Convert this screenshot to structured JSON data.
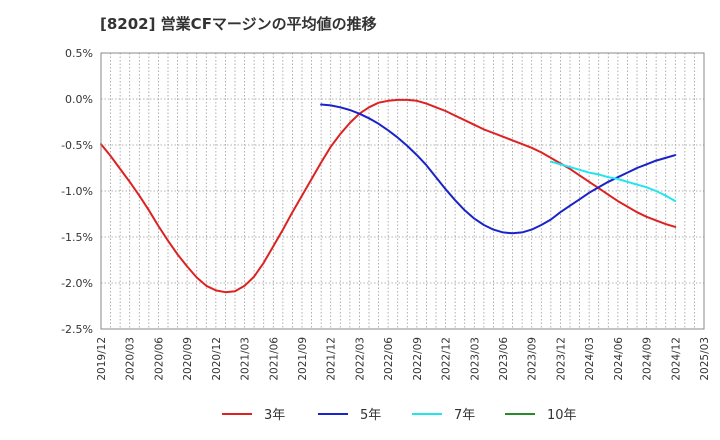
{
  "chart_data": {
    "type": "line",
    "title": "[8202]  営業CFマージンの平均値の推移",
    "xlabel": "",
    "ylabel": "",
    "ylim": [
      -2.5,
      0.5
    ],
    "yticks": [
      0.5,
      0.0,
      -0.5,
      -1.0,
      -1.5,
      -2.0,
      -2.5
    ],
    "ytick_labels": [
      "0.5%",
      "0.0%",
      "-0.5%",
      "-1.0%",
      "-1.5%",
      "-2.0%",
      "-2.5%"
    ],
    "xlim": [
      "2019-12",
      "2025-03"
    ],
    "xtick_labels": [
      "2019/12",
      "2020/03",
      "2020/06",
      "2020/09",
      "2020/12",
      "2021/03",
      "2021/06",
      "2021/09",
      "2021/12",
      "2022/03",
      "2022/06",
      "2022/09",
      "2022/12",
      "2023/03",
      "2023/06",
      "2023/09",
      "2023/12",
      "2024/03",
      "2024/06",
      "2024/09",
      "2024/12",
      "2025/03"
    ],
    "grid": true,
    "legend_position": "bottom",
    "series": [
      {
        "name": "3年",
        "color": "#dd2222",
        "points": [
          [
            "2019-12",
            -0.49
          ],
          [
            "2020-01",
            -0.62
          ],
          [
            "2020-02",
            -0.76
          ],
          [
            "2020-03",
            -0.9
          ],
          [
            "2020-04",
            -1.05
          ],
          [
            "2020-05",
            -1.21
          ],
          [
            "2020-06",
            -1.38
          ],
          [
            "2020-07",
            -1.54
          ],
          [
            "2020-08",
            -1.69
          ],
          [
            "2020-09",
            -1.82
          ],
          [
            "2020-10",
            -1.94
          ],
          [
            "2020-11",
            -2.03
          ],
          [
            "2020-12",
            -2.08
          ],
          [
            "2021-01",
            -2.1
          ],
          [
            "2021-02",
            -2.09
          ],
          [
            "2021-03",
            -2.03
          ],
          [
            "2021-04",
            -1.93
          ],
          [
            "2021-05",
            -1.78
          ],
          [
            "2021-06",
            -1.6
          ],
          [
            "2021-07",
            -1.42
          ],
          [
            "2021-08",
            -1.23
          ],
          [
            "2021-09",
            -1.05
          ],
          [
            "2021-10",
            -0.87
          ],
          [
            "2021-11",
            -0.69
          ],
          [
            "2021-12",
            -0.52
          ],
          [
            "2022-01",
            -0.38
          ],
          [
            "2022-02",
            -0.26
          ],
          [
            "2022-03",
            -0.16
          ],
          [
            "2022-04",
            -0.09
          ],
          [
            "2022-05",
            -0.04
          ],
          [
            "2022-06",
            -0.02
          ],
          [
            "2022-07",
            -0.01
          ],
          [
            "2022-08",
            -0.01
          ],
          [
            "2022-09",
            -0.02
          ],
          [
            "2022-10",
            -0.05
          ],
          [
            "2022-11",
            -0.09
          ],
          [
            "2022-12",
            -0.13
          ],
          [
            "2023-01",
            -0.18
          ],
          [
            "2023-02",
            -0.23
          ],
          [
            "2023-03",
            -0.28
          ],
          [
            "2023-04",
            -0.33
          ],
          [
            "2023-05",
            -0.37
          ],
          [
            "2023-06",
            -0.41
          ],
          [
            "2023-07",
            -0.45
          ],
          [
            "2023-08",
            -0.49
          ],
          [
            "2023-09",
            -0.53
          ],
          [
            "2023-10",
            -0.58
          ],
          [
            "2023-11",
            -0.64
          ],
          [
            "2023-12",
            -0.7
          ],
          [
            "2024-01",
            -0.76
          ],
          [
            "2024-02",
            -0.83
          ],
          [
            "2024-03",
            -0.9
          ],
          [
            "2024-04",
            -0.97
          ],
          [
            "2024-05",
            -1.04
          ],
          [
            "2024-06",
            -1.11
          ],
          [
            "2024-07",
            -1.17
          ],
          [
            "2024-08",
            -1.23
          ],
          [
            "2024-09",
            -1.28
          ],
          [
            "2024-10",
            -1.32
          ],
          [
            "2024-11",
            -1.36
          ],
          [
            "2024-12",
            -1.39
          ]
        ]
      },
      {
        "name": "5年",
        "color": "#1a23c8",
        "points": [
          [
            "2021-11",
            -0.06
          ],
          [
            "2021-12",
            -0.07
          ],
          [
            "2022-01",
            -0.09
          ],
          [
            "2022-02",
            -0.12
          ],
          [
            "2022-03",
            -0.16
          ],
          [
            "2022-04",
            -0.21
          ],
          [
            "2022-05",
            -0.27
          ],
          [
            "2022-06",
            -0.34
          ],
          [
            "2022-07",
            -0.42
          ],
          [
            "2022-08",
            -0.51
          ],
          [
            "2022-09",
            -0.61
          ],
          [
            "2022-10",
            -0.72
          ],
          [
            "2022-11",
            -0.85
          ],
          [
            "2022-12",
            -0.98
          ],
          [
            "2023-01",
            -1.1
          ],
          [
            "2023-02",
            -1.21
          ],
          [
            "2023-03",
            -1.3
          ],
          [
            "2023-04",
            -1.37
          ],
          [
            "2023-05",
            -1.42
          ],
          [
            "2023-06",
            -1.45
          ],
          [
            "2023-07",
            -1.46
          ],
          [
            "2023-08",
            -1.45
          ],
          [
            "2023-09",
            -1.42
          ],
          [
            "2023-10",
            -1.37
          ],
          [
            "2023-11",
            -1.31
          ],
          [
            "2023-12",
            -1.23
          ],
          [
            "2024-01",
            -1.16
          ],
          [
            "2024-02",
            -1.09
          ],
          [
            "2024-03",
            -1.02
          ],
          [
            "2024-04",
            -0.96
          ],
          [
            "2024-05",
            -0.9
          ],
          [
            "2024-06",
            -0.85
          ],
          [
            "2024-07",
            -0.8
          ],
          [
            "2024-08",
            -0.75
          ],
          [
            "2024-09",
            -0.71
          ],
          [
            "2024-10",
            -0.67
          ],
          [
            "2024-11",
            -0.64
          ],
          [
            "2024-12",
            -0.61
          ]
        ]
      },
      {
        "name": "7年",
        "color": "#22e5ee",
        "points": [
          [
            "2023-11",
            -0.68
          ],
          [
            "2023-12",
            -0.71
          ],
          [
            "2024-01",
            -0.74
          ],
          [
            "2024-02",
            -0.77
          ],
          [
            "2024-03",
            -0.8
          ],
          [
            "2024-04",
            -0.82
          ],
          [
            "2024-05",
            -0.85
          ],
          [
            "2024-06",
            -0.87
          ],
          [
            "2024-07",
            -0.9
          ],
          [
            "2024-08",
            -0.93
          ],
          [
            "2024-09",
            -0.96
          ],
          [
            "2024-10",
            -1.0
          ],
          [
            "2024-11",
            -1.05
          ],
          [
            "2024-12",
            -1.11
          ]
        ]
      },
      {
        "name": "10年",
        "color": "#2a8a2a",
        "points": []
      }
    ]
  }
}
